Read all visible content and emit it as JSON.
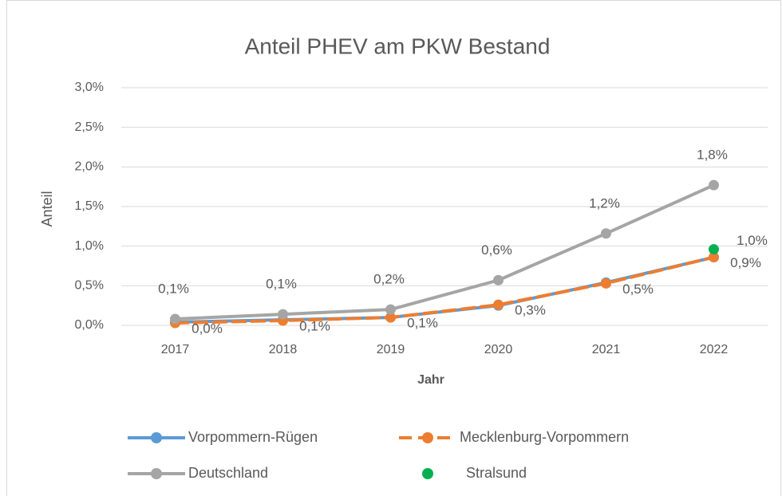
{
  "chart_data": {
    "type": "line",
    "title": "Anteil PHEV am PKW Bestand",
    "x_label": "Jahr",
    "y_label": "Anteil",
    "categories": [
      "2017",
      "2018",
      "2019",
      "2020",
      "2021",
      "2022"
    ],
    "ylim": [
      0,
      3
    ],
    "yticks": [
      {
        "value": 0,
        "label": "0,0%"
      },
      {
        "value": 0.5,
        "label": "0,5%"
      },
      {
        "value": 1,
        "label": "1,0%"
      },
      {
        "value": 1.5,
        "label": "1,5%"
      },
      {
        "value": 2,
        "label": "2,0%"
      },
      {
        "value": 2.5,
        "label": "2,5%"
      },
      {
        "value": 3,
        "label": "3,0%"
      }
    ],
    "grid": true,
    "legend": "bottom",
    "series": [
      {
        "name": "Vorpommern-Rügen",
        "color": "#5b9bd5",
        "line": "solid",
        "values": [
          0.04,
          0.07,
          0.1,
          0.25,
          0.54,
          0.86
        ]
      },
      {
        "name": "Mecklenburg-Vorpommern",
        "color": "#ed7d31",
        "line": "dashed",
        "values": [
          0.03,
          0.06,
          0.1,
          0.26,
          0.53,
          0.86
        ],
        "value_labels": [
          "0,0%",
          "0,1%",
          "0,1%",
          "0,3%",
          "0,5%",
          "0,9%"
        ]
      },
      {
        "name": "Deutschland",
        "color": "#a5a5a5",
        "line": "solid",
        "values": [
          0.08,
          0.14,
          0.2,
          0.57,
          1.16,
          1.77
        ],
        "value_labels": [
          "0,1%",
          "0,1%",
          "0,2%",
          "0,6%",
          "1,2%",
          "1,8%"
        ]
      },
      {
        "name": "Stralsund",
        "color": "#00b050",
        "line": "none",
        "values": [
          null,
          null,
          null,
          null,
          null,
          0.96
        ],
        "value_labels": [
          null,
          null,
          null,
          null,
          null,
          "1,0%"
        ]
      }
    ]
  }
}
